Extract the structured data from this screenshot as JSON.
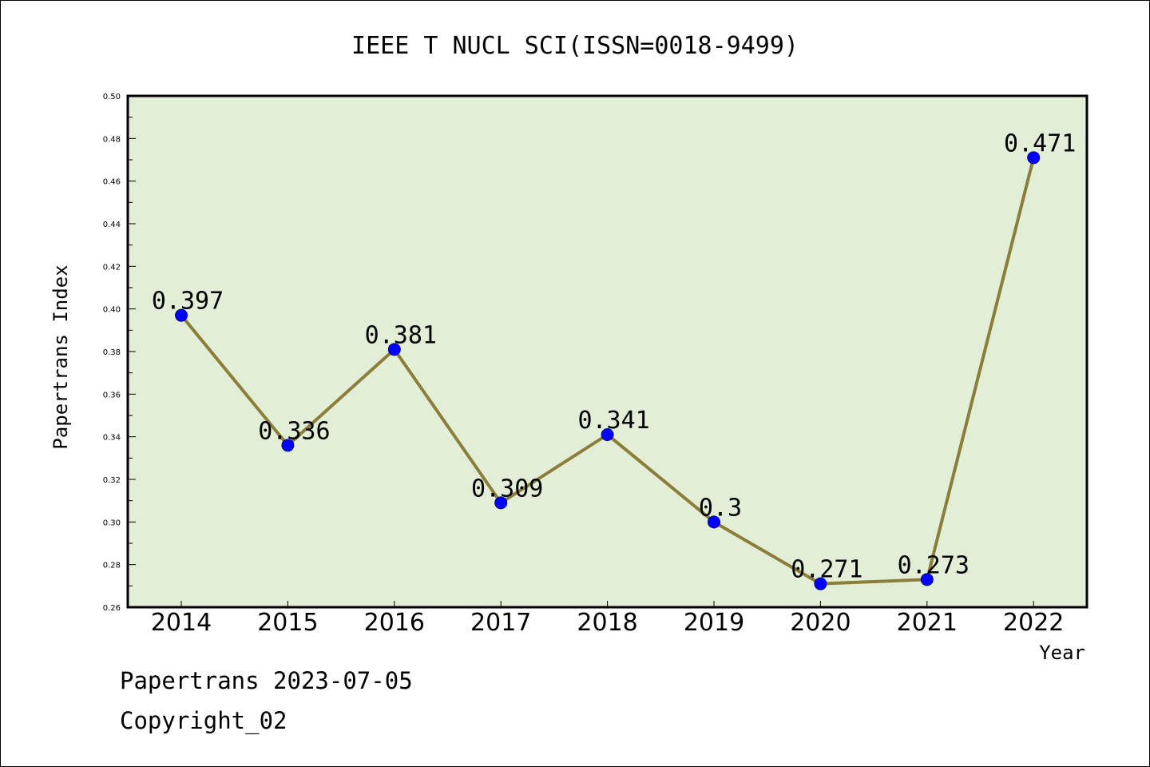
{
  "chart_data": {
    "type": "line",
    "title": "IEEE T NUCL SCI(ISSN=0018-9499)",
    "xlabel": "Year",
    "ylabel": "Papertrans Index",
    "categories": [
      "2014",
      "2015",
      "2016",
      "2017",
      "2018",
      "2019",
      "2020",
      "2021",
      "2022"
    ],
    "values": [
      0.397,
      0.336,
      0.381,
      0.309,
      0.341,
      0.3,
      0.271,
      0.273,
      0.471
    ],
    "data_labels": [
      "0.397",
      "0.336",
      "0.381",
      "0.309",
      "0.341",
      "0.3",
      "0.271",
      "0.273",
      "0.471"
    ],
    "ylim": [
      0.26,
      0.5
    ],
    "yticks": [
      "0.26",
      "0.28",
      "0.30",
      "0.32",
      "0.34",
      "0.36",
      "0.38",
      "0.40",
      "0.42",
      "0.44",
      "0.46",
      "0.48",
      "0.50"
    ],
    "grid": false,
    "colors": {
      "plot_background": "#e2efd6",
      "line": "#8b7d3a",
      "marker": "#0000ff"
    }
  },
  "footer": {
    "date_text": "Papertrans 2023-07-05",
    "copyright_text": "Copyright_02"
  }
}
